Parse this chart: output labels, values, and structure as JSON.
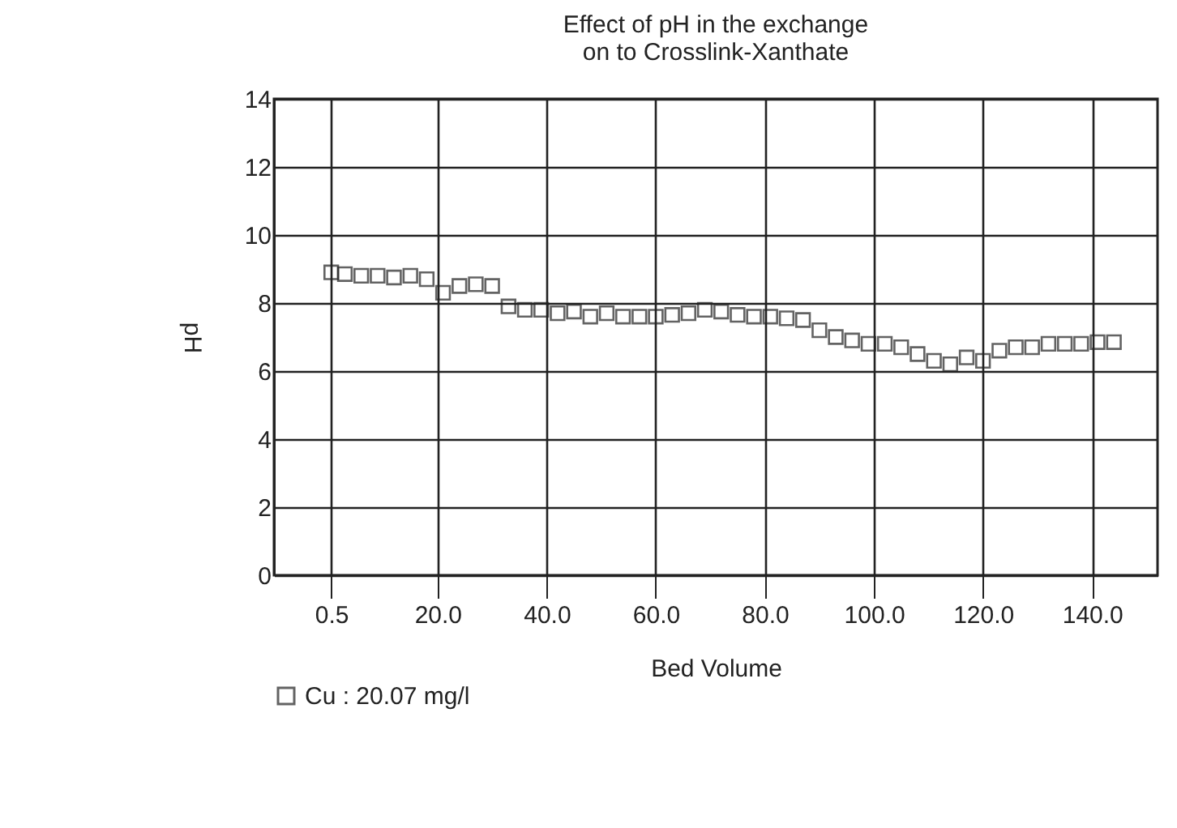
{
  "chart_data": {
    "type": "scatter",
    "title": "Effect of pH in the exchange\non to Crosslink-Xanthate",
    "xlabel": "Bed Volume",
    "ylabel": "pH",
    "xlim": [
      -10,
      152
    ],
    "ylim": [
      0,
      14
    ],
    "xticks": [
      0.5,
      {
        "value": 20,
        "label": "20.0"
      },
      {
        "value": 40,
        "label": "40.0"
      },
      {
        "value": 60,
        "label": "60.0"
      },
      {
        "value": 80,
        "label": "80.0"
      },
      {
        "value": 100,
        "label": "100.0"
      },
      {
        "value": 120,
        "label": "120.0"
      },
      {
        "value": 140,
        "label": "140.0"
      }
    ],
    "yticks": [
      0,
      2,
      4,
      6,
      8,
      10,
      12,
      14
    ],
    "x": [
      0.5,
      3,
      6,
      9,
      12,
      15,
      18,
      21,
      24,
      27,
      30,
      33,
      36,
      39,
      42,
      45,
      48,
      51,
      54,
      57,
      60,
      63,
      66,
      69,
      72,
      75,
      78,
      81,
      84,
      87,
      90,
      93,
      96,
      99,
      102,
      105,
      108,
      111,
      114,
      117,
      120,
      123,
      126,
      129,
      132,
      135,
      138,
      141,
      144
    ],
    "series": [
      {
        "name": "Cu : 20.07 mg/l",
        "color": "#222222",
        "values": [
          8.9,
          8.85,
          8.8,
          8.8,
          8.75,
          8.8,
          8.7,
          8.3,
          8.5,
          8.55,
          8.5,
          7.9,
          7.8,
          7.8,
          7.7,
          7.75,
          7.6,
          7.7,
          7.6,
          7.6,
          7.6,
          7.65,
          7.7,
          7.8,
          7.75,
          7.65,
          7.6,
          7.6,
          7.55,
          7.5,
          7.2,
          7.0,
          6.9,
          6.8,
          6.8,
          6.7,
          6.5,
          6.3,
          6.2,
          6.4,
          6.3,
          6.6,
          6.7,
          6.7,
          6.8,
          6.8,
          6.8,
          6.85,
          6.85
        ]
      }
    ],
    "grid": true,
    "marker": "square",
    "legend": "bottom"
  }
}
